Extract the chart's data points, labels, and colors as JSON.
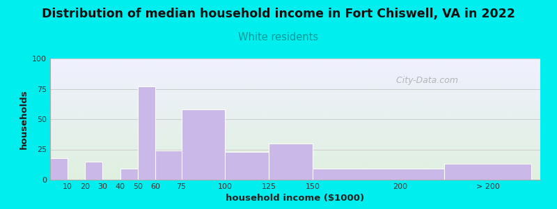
{
  "title": "Distribution of median household income in Fort Chiswell, VA in 2022",
  "subtitle": "White residents",
  "xlabel": "household income ($1000)",
  "ylabel": "households",
  "title_fontsize": 12.5,
  "subtitle_fontsize": 10.5,
  "subtitle_color": "#009999",
  "bar_color": "#c9b8e8",
  "background_color": "#00eeee",
  "ylim": [
    0,
    100
  ],
  "yticks": [
    0,
    25,
    50,
    75,
    100
  ],
  "bar_left_edges": [
    0,
    10,
    20,
    30,
    40,
    50,
    60,
    75,
    100,
    125,
    150,
    225
  ],
  "bar_widths": [
    10,
    10,
    10,
    10,
    10,
    10,
    15,
    25,
    25,
    25,
    75,
    50
  ],
  "bar_heights": [
    18,
    0,
    15,
    0,
    9,
    77,
    24,
    58,
    23,
    30,
    9,
    13
  ],
  "xtick_positions": [
    10,
    20,
    30,
    40,
    50,
    60,
    75,
    100,
    125,
    150,
    200,
    250
  ],
  "xtick_labels": [
    "10",
    "20",
    "30",
    "40",
    "50",
    "60",
    "75",
    "100",
    "125",
    "150",
    "200",
    "> 200"
  ],
  "watermark_text": " City-Data.com",
  "grid_color": "#cccccc",
  "plot_bg_top_color": "#f0f0ff",
  "plot_bg_bottom_color": "#dff0df",
  "xlim": [
    0,
    280
  ]
}
